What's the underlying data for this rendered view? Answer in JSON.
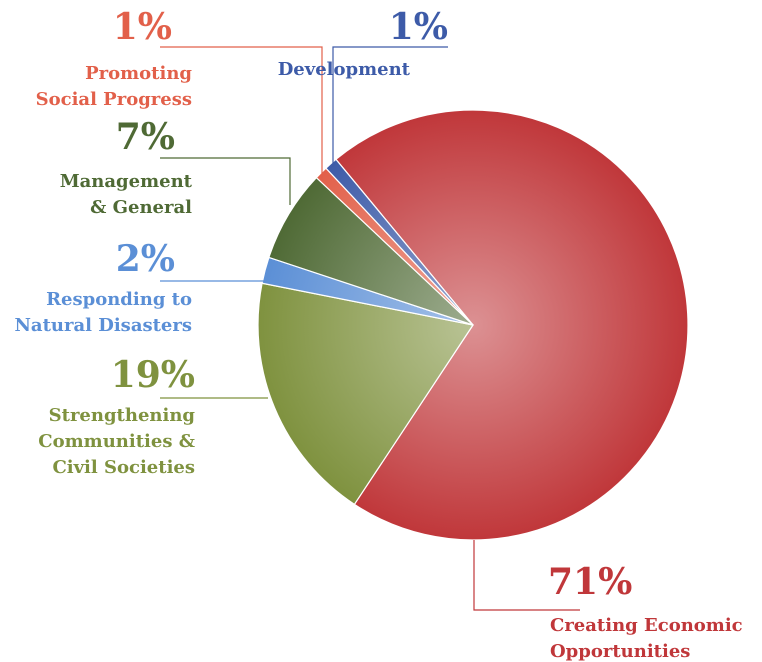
{
  "chart_data": {
    "type": "pie",
    "categories": [
      "Creating Economic Opportunities",
      "Strengthening Communities & Civil Societies",
      "Responding to Natural Disasters",
      "Management & General",
      "Promoting Social Progress",
      "Development"
    ],
    "values": [
      71,
      19,
      2,
      7,
      1,
      1
    ],
    "value_labels": [
      "71%",
      "19%",
      "2%",
      "7%",
      "1%",
      "1%"
    ],
    "colors": [
      "#c0373a",
      "#7f923f",
      "#5b8fd6",
      "#4f6a35",
      "#e2604a",
      "#3d5ba8"
    ]
  }
}
